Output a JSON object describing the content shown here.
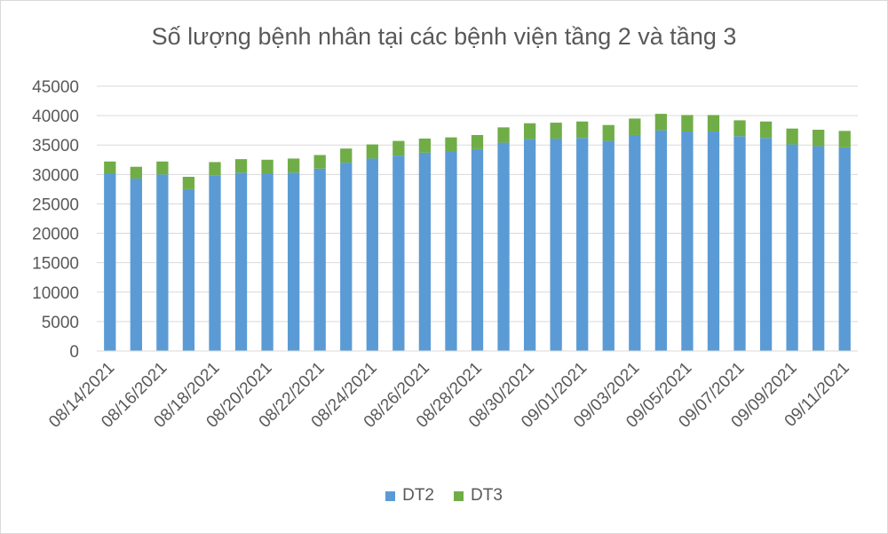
{
  "chart_data": {
    "type": "bar",
    "stacked": true,
    "title": "Số lượng bệnh nhân tại các bệnh viện tầng 2 và tầng 3",
    "xlabel": "",
    "ylabel": "",
    "ylim": [
      0,
      45000
    ],
    "yticks": [
      0,
      5000,
      10000,
      15000,
      20000,
      25000,
      30000,
      35000,
      40000,
      45000
    ],
    "grid": true,
    "legend_position": "bottom",
    "categories": [
      "08/14/2021",
      "08/15/2021",
      "08/16/2021",
      "08/17/2021",
      "08/18/2021",
      "08/19/2021",
      "08/20/2021",
      "08/21/2021",
      "08/22/2021",
      "08/23/2021",
      "08/24/2021",
      "08/25/2021",
      "08/26/2021",
      "08/27/2021",
      "08/28/2021",
      "08/29/2021",
      "08/30/2021",
      "08/31/2021",
      "09/01/2021",
      "09/02/2021",
      "09/03/2021",
      "09/04/2021",
      "09/05/2021",
      "09/06/2021",
      "09/07/2021",
      "09/08/2021",
      "09/09/2021",
      "09/10/2021",
      "09/11/2021"
    ],
    "tick_labels": [
      "08/14/2021",
      "08/16/2021",
      "08/18/2021",
      "08/20/2021",
      "08/22/2021",
      "08/24/2021",
      "08/26/2021",
      "08/28/2021",
      "08/30/2021",
      "09/01/2021",
      "09/03/2021",
      "09/05/2021",
      "09/07/2021",
      "09/09/2021",
      "09/11/2021"
    ],
    "series": [
      {
        "name": "DT2",
        "color": "#5b9bd5",
        "values": [
          30200,
          29300,
          30000,
          27500,
          29800,
          30300,
          30200,
          30300,
          31000,
          32000,
          32700,
          33200,
          33700,
          33900,
          34300,
          35400,
          36000,
          36100,
          36200,
          35700,
          36700,
          37500,
          37300,
          37300,
          36500,
          36200,
          35100,
          34800,
          34600
        ]
      },
      {
        "name": "DT3",
        "color": "#70ad47",
        "values": [
          2000,
          2000,
          2200,
          2100,
          2300,
          2300,
          2300,
          2400,
          2300,
          2400,
          2400,
          2500,
          2400,
          2400,
          2400,
          2600,
          2700,
          2700,
          2800,
          2700,
          2800,
          2800,
          2800,
          2800,
          2700,
          2800,
          2700,
          2800,
          2800
        ]
      }
    ]
  }
}
